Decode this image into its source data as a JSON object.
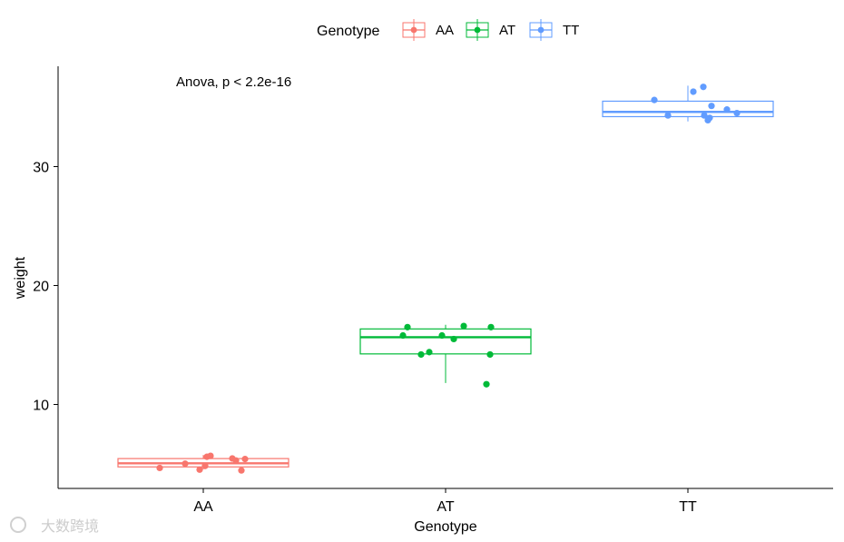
{
  "chart_data": {
    "type": "boxplot",
    "annotation": "Anova, p < 2.2e-16",
    "xlabel": "Genotype",
    "ylabel": "weight",
    "categories": [
      "AA",
      "AT",
      "TT"
    ],
    "yticks": [
      10,
      20,
      30
    ],
    "ylim": [
      3.0,
      37.5
    ],
    "legend": {
      "title": "Genotype",
      "position": "top",
      "entries": [
        "AA",
        "AT",
        "TT"
      ]
    },
    "grid": false,
    "series": [
      {
        "name": "AA",
        "color": "#F8766D",
        "box": {
          "q1": 4.75,
          "median": 5.05,
          "q3": 5.45,
          "whisker_low": 4.55,
          "whisker_high": 5.75
        },
        "points": [
          4.66,
          5.02,
          4.52,
          4.83,
          5.6,
          5.68,
          5.46,
          5.41,
          4.45,
          5.29
        ]
      },
      {
        "name": "AT",
        "color": "#00BA38",
        "box": {
          "q1": 14.25,
          "median": 15.65,
          "q3": 16.35,
          "whisker_low": 11.8,
          "whisker_high": 16.7
        },
        "points": [
          15.8,
          16.5,
          14.2,
          14.4,
          15.8,
          15.5,
          16.6,
          11.7,
          14.2,
          16.5
        ]
      },
      {
        "name": "TT",
        "color": "#619CFF",
        "box": {
          "q1": 34.2,
          "median": 34.6,
          "q3": 35.5,
          "whisker_low": 33.8,
          "whisker_high": 36.8
        },
        "points": [
          35.6,
          34.3,
          36.3,
          36.7,
          34.3,
          33.9,
          34.1,
          35.1,
          34.8,
          34.5
        ]
      }
    ]
  },
  "watermark": "大数跨境"
}
